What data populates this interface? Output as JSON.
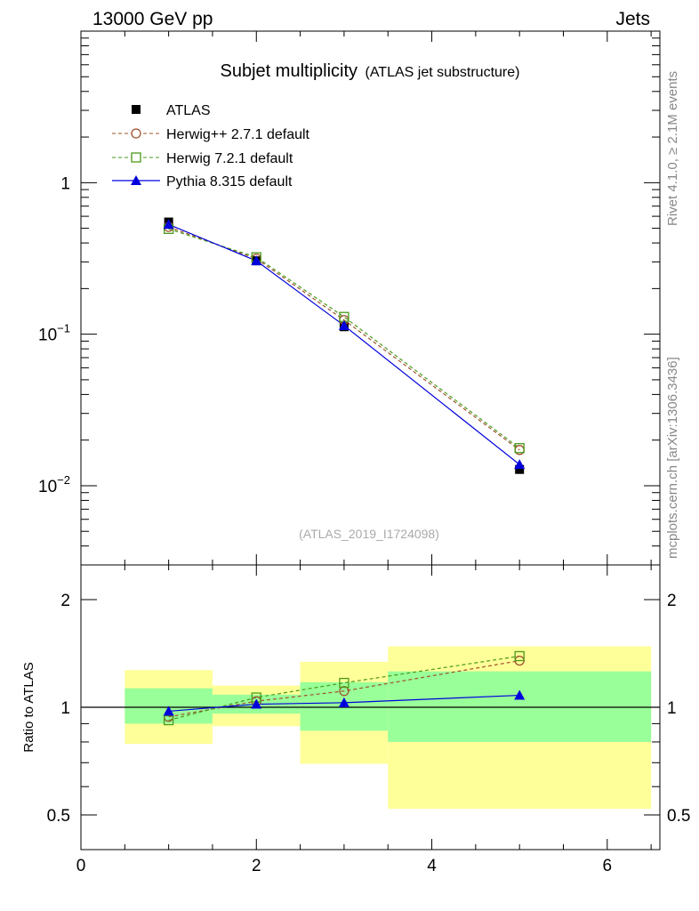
{
  "header": {
    "left": "13000 GeV pp",
    "right": "Jets"
  },
  "side_labels": {
    "top": "Rivet 4.1.0, ≥ 2.1M events",
    "bottom": "mcplots.cern.ch [arXiv:1306.3436]"
  },
  "chart_data": [
    {
      "type": "line",
      "title": "Subjet multiplicity",
      "subtitle": "(ATLAS jet substructure)",
      "watermark": "(ATLAS_2019_I1724098)",
      "yscale": "log",
      "xlim": [
        0,
        6.6
      ],
      "ylim": [
        0.003,
        10
      ],
      "ytick_labels": [
        {
          "value": 1,
          "base": "1",
          "exp": ""
        },
        {
          "value": 0.1,
          "base": "10",
          "exp": "−1"
        },
        {
          "value": 0.01,
          "base": "10",
          "exp": "−2"
        }
      ],
      "legend_position": "top-left",
      "series": [
        {
          "name": "ATLAS",
          "style": "data",
          "marker": "square-filled",
          "color": "#000000",
          "x": [
            1,
            2,
            3,
            5
          ],
          "y": [
            0.55,
            0.305,
            0.112,
            0.0128
          ]
        },
        {
          "name": "Herwig++ 2.7.1 default",
          "style": "dashed",
          "marker": "circle-open",
          "color": "#a0522d",
          "x": [
            1,
            2,
            3,
            5
          ],
          "y": [
            0.51,
            0.315,
            0.124,
            0.0172
          ]
        },
        {
          "name": "Herwig 7.2.1 default",
          "style": "dashed",
          "marker": "square-open",
          "color": "#4a9a1a",
          "x": [
            1,
            2,
            3,
            5
          ],
          "y": [
            0.495,
            0.322,
            0.13,
            0.0177
          ]
        },
        {
          "name": "Pythia 8.315 default",
          "style": "solid",
          "marker": "triangle-filled",
          "color": "#0000dd",
          "x": [
            1,
            2,
            3,
            5
          ],
          "y": [
            0.53,
            0.305,
            0.114,
            0.0138
          ]
        }
      ]
    },
    {
      "type": "line",
      "ylabel": "Ratio to ATLAS",
      "yscale": "log",
      "xlim": [
        0,
        6.6
      ],
      "ylim": [
        0.4,
        2.5
      ],
      "xticks": [
        0,
        2,
        4,
        6
      ],
      "yticks": [
        0.5,
        1,
        2
      ],
      "reference_line": 1,
      "bands": [
        {
          "xlo": 0.5,
          "xhi": 1.5,
          "yellow": [
            0.79,
            1.27
          ],
          "green": [
            0.9,
            1.13
          ]
        },
        {
          "xlo": 1.5,
          "xhi": 2.5,
          "yellow": [
            0.885,
            1.15
          ],
          "green": [
            0.96,
            1.085
          ]
        },
        {
          "xlo": 2.5,
          "xhi": 3.5,
          "yellow": [
            0.695,
            1.34
          ],
          "green": [
            0.86,
            1.175
          ]
        },
        {
          "xlo": 3.5,
          "xhi": 6.5,
          "yellow": [
            0.52,
            1.48
          ],
          "green": [
            0.8,
            1.26
          ]
        }
      ],
      "series": [
        {
          "name": "Herwig++ 2.7.1 default",
          "x": [
            1,
            2,
            3,
            5
          ],
          "y": [
            0.94,
            1.04,
            1.11,
            1.35
          ]
        },
        {
          "name": "Herwig 7.2.1 default",
          "x": [
            1,
            2,
            3,
            5
          ],
          "y": [
            0.92,
            1.065,
            1.17,
            1.39
          ]
        },
        {
          "name": "Pythia 8.315 default",
          "x": [
            1,
            2,
            3,
            5
          ],
          "y": [
            0.975,
            1.02,
            1.03,
            1.08
          ]
        }
      ]
    }
  ]
}
